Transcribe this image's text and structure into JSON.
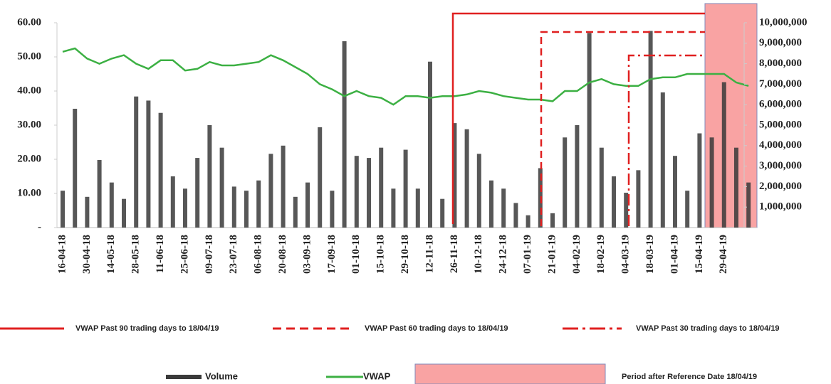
{
  "chart_data": {
    "type": "combo",
    "categories": [
      "16-04-18",
      null,
      "30-04-18",
      null,
      "14-05-18",
      null,
      "28-05-18",
      null,
      "11-06-18",
      null,
      "25-06-18",
      null,
      "09-07-18",
      null,
      "23-07-18",
      null,
      "06-08-18",
      null,
      "20-08-18",
      null,
      "03-09-18",
      null,
      "17-09-18",
      null,
      "01-10-18",
      null,
      "15-10-18",
      null,
      "29-10-18",
      null,
      "12-11-18",
      null,
      "26-11-18",
      null,
      "10-12-18",
      null,
      "24-12-18",
      null,
      "07-01-19",
      null,
      "21-01-19",
      null,
      "04-02-19",
      null,
      "18-02-19",
      null,
      "04-03-19",
      null,
      "18-03-19",
      null,
      "01-04-19",
      null,
      "15-04-19",
      null,
      "29-04-19",
      null,
      null
    ],
    "series": [
      {
        "name": "Volume",
        "type": "bar",
        "axis": "y2",
        "color": "#3a3a3a",
        "values": [
          1800000,
          5800000,
          1500000,
          3300000,
          2200000,
          1400000,
          6400000,
          6200000,
          5600000,
          2500000,
          1900000,
          3400000,
          5000000,
          3900000,
          2000000,
          1800000,
          2300000,
          3600000,
          4000000,
          1500000,
          2200000,
          4900000,
          1800000,
          9100000,
          3500000,
          3400000,
          3900000,
          1900000,
          3800000,
          1900000,
          8100000,
          1400000,
          5100000,
          4800000,
          3600000,
          2300000,
          1900000,
          1200000,
          600000,
          2900000,
          700000,
          4400000,
          5000000,
          9500000,
          3900000,
          2500000,
          1700000,
          2800000,
          9600000,
          6600000,
          3500000,
          1800000,
          4600000,
          4400000,
          7100000,
          3900000,
          2200000
        ]
      },
      {
        "name": "VWAP",
        "type": "line",
        "axis": "y",
        "color": "#3cb043",
        "values": [
          51.5,
          52.5,
          49.5,
          48,
          49.5,
          50.5,
          48,
          46.5,
          49,
          49,
          46,
          46.5,
          48.5,
          47.5,
          47.5,
          48,
          48.5,
          50.5,
          49,
          47,
          45,
          42,
          40.5,
          38.5,
          40,
          38.5,
          38,
          36,
          38.5,
          38.5,
          38,
          38.5,
          38.5,
          39,
          40,
          39.5,
          38.5,
          38,
          37.5,
          37.5,
          37,
          40,
          40,
          42.5,
          43.5,
          42,
          41.5,
          41.5,
          43.5,
          44,
          44,
          45,
          45,
          45,
          45,
          42.5,
          41.5
        ]
      }
    ],
    "ylim": [
      0,
      60
    ],
    "yticks": [
      {
        "value": 0,
        "label": "-"
      },
      {
        "value": 10,
        "label": "10.00"
      },
      {
        "value": 20,
        "label": "20.00"
      },
      {
        "value": 30,
        "label": "30.00"
      },
      {
        "value": 40,
        "label": "40.00"
      },
      {
        "value": 50,
        "label": "50.00"
      },
      {
        "value": 60,
        "label": "60.00"
      }
    ],
    "y2lim": [
      0,
      10000000
    ],
    "y2ticks": [
      {
        "value": 1000000,
        "label": "1,000,000"
      },
      {
        "value": 2000000,
        "label": "2,000,000"
      },
      {
        "value": 3000000,
        "label": "3,000,000"
      },
      {
        "value": 4000000,
        "label": "4,000,000"
      },
      {
        "value": 5000000,
        "label": "5,000,000"
      },
      {
        "value": 6000000,
        "label": "6,000,000"
      },
      {
        "value": 7000000,
        "label": "7,000,000"
      },
      {
        "value": 8000000,
        "label": "8,000,000"
      },
      {
        "value": 9000000,
        "label": "9,000,000"
      },
      {
        "value": 10000000,
        "label": "10,000,000"
      }
    ],
    "annotations": [
      "VWAP Past 90 trading days to 18/04/19",
      "VWAP Past 60 trading days to 18/04/19",
      "VWAP Past 30 trading days to 18/04/19",
      "Period after Reference Date 18/04/19"
    ]
  }
}
